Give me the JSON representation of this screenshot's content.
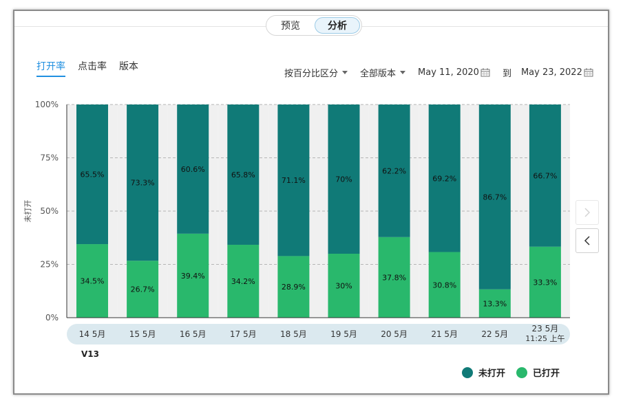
{
  "header": {
    "segments": [
      {
        "label": "预览",
        "active": false
      },
      {
        "label": "分析",
        "active": true
      }
    ]
  },
  "tabs": [
    {
      "label": "打开率",
      "active": true
    },
    {
      "label": "点击率",
      "active": false
    },
    {
      "label": "版本",
      "active": false
    }
  ],
  "filters": {
    "split_mode": "按百分比区分",
    "version_filter": "全部版本",
    "date_from": "May 11, 2020",
    "date_to_label": "到",
    "date_to": "May 23, 2022"
  },
  "version_label": "V13",
  "colors": {
    "unopened": "#107a77",
    "opened": "#29b86c",
    "column_bg": "#f0f0f0",
    "axis_band": "#dbe9ef"
  },
  "chart_data": {
    "type": "bar",
    "stacked": true,
    "ylabel": "未打开",
    "ylim": [
      0,
      100
    ],
    "yticks": [
      "0%",
      "25%",
      "50%",
      "75%",
      "100%"
    ],
    "categories": [
      "14 5月",
      "15 5月",
      "16 5月",
      "17 5月",
      "18 5月",
      "19 5月",
      "20 5月",
      "21 5月",
      "22 5月",
      "23 5月"
    ],
    "category_sublabels": [
      "",
      "",
      "",
      "",
      "",
      "",
      "",
      "",
      "",
      "11:25 上午"
    ],
    "series": [
      {
        "name": "已打开",
        "values": [
          34.5,
          26.7,
          39.4,
          34.2,
          28.9,
          30,
          37.8,
          30.8,
          13.3,
          33.3
        ],
        "labels": [
          "34.5%",
          "26.7%",
          "39.4%",
          "34.2%",
          "28.9%",
          "30%",
          "37.8%",
          "30.8%",
          "13.3%",
          "33.3%"
        ]
      },
      {
        "name": "未打开",
        "values": [
          65.5,
          73.3,
          60.6,
          65.8,
          71.1,
          70,
          62.2,
          69.2,
          86.7,
          66.7
        ],
        "labels": [
          "65.5%",
          "73.3%",
          "60.6%",
          "65.8%",
          "71.1%",
          "70%",
          "62.2%",
          "69.2%",
          "86.7%",
          "66.7%"
        ]
      }
    ],
    "grid": true,
    "legend": "bottom-right"
  }
}
